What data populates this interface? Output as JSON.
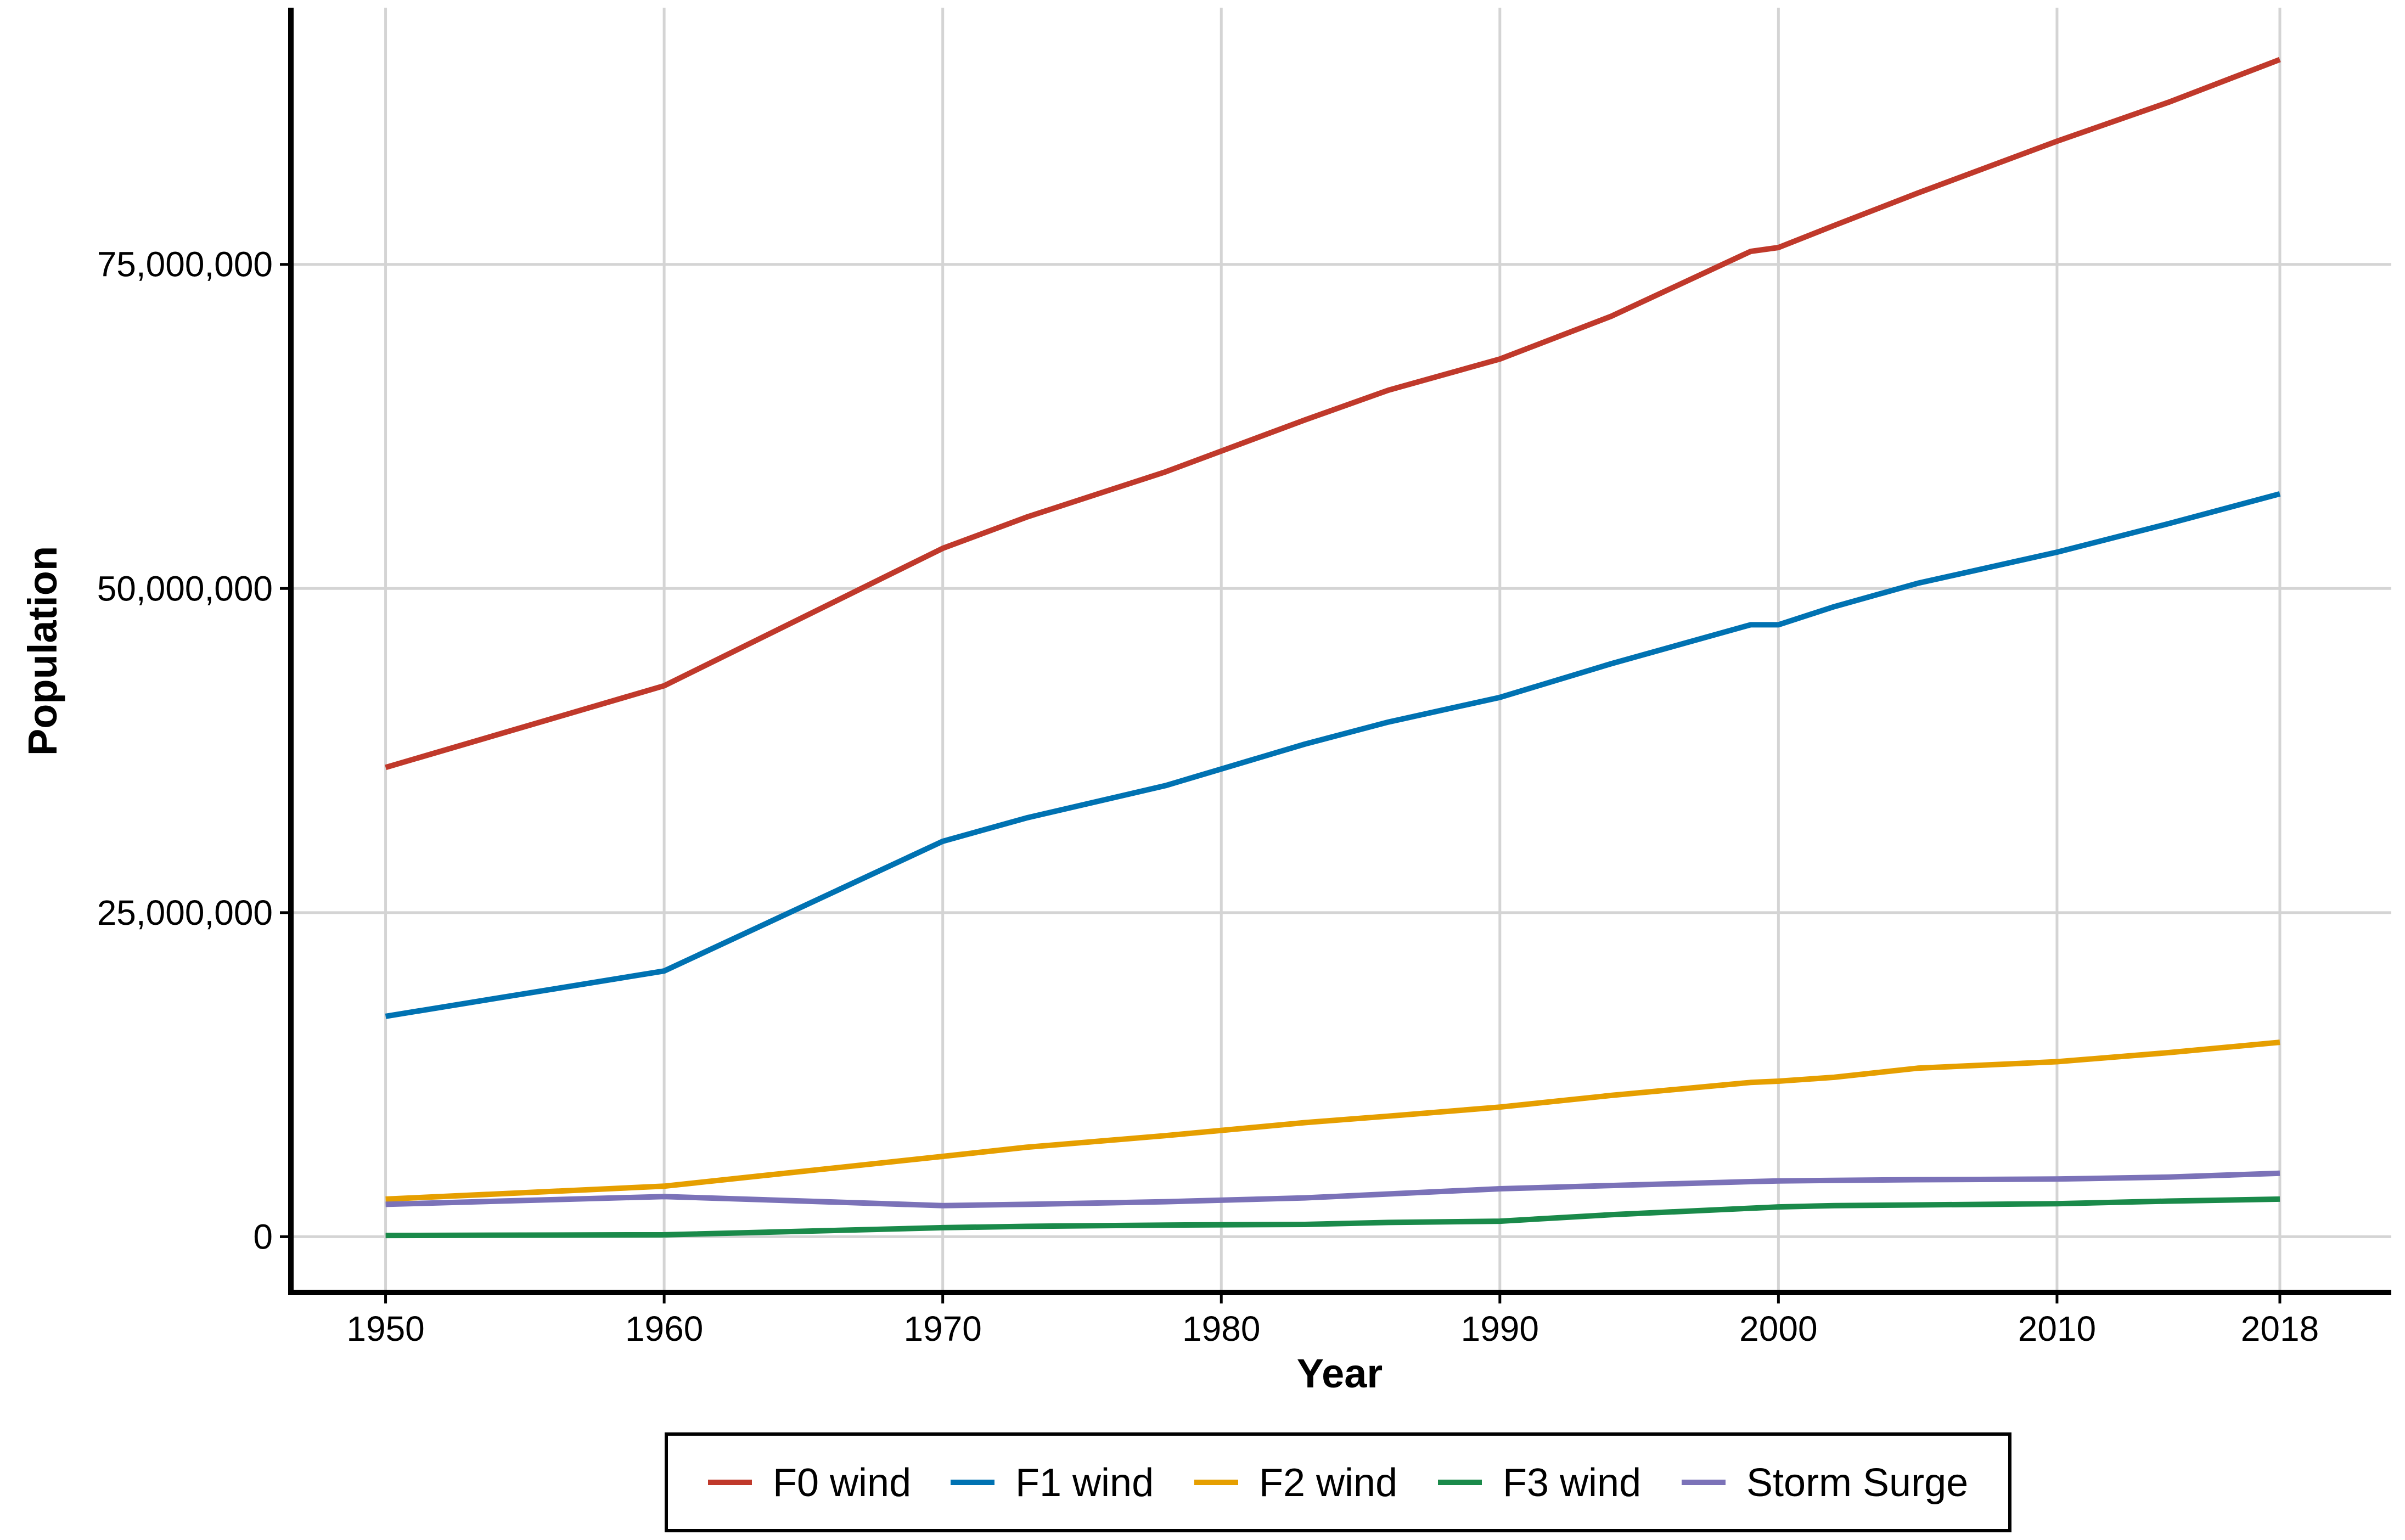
{
  "chart_data": {
    "type": "line",
    "title": "",
    "xlabel": "Year",
    "ylabel": "Population",
    "xlim": [
      1946.6,
      2022
    ],
    "ylim": [
      -4300000,
      94800000
    ],
    "x_ticks": [
      1950,
      1960,
      1970,
      1980,
      1990,
      2000,
      2010,
      2018
    ],
    "x_tick_labels": [
      "1950",
      "1960",
      "1970",
      "1980",
      "1990",
      "2000",
      "2010",
      "2018"
    ],
    "y_ticks": [
      0,
      25000000,
      50000000,
      75000000
    ],
    "y_tick_labels": [
      "0",
      "25,000,000",
      "50,000,000",
      "75,000,000"
    ],
    "grid": true,
    "legend_position": "bottom",
    "x": [
      1950,
      1960,
      1970,
      1973,
      1978,
      1983,
      1986,
      1990,
      1994,
      1999,
      2000,
      2002,
      2005,
      2010,
      2014,
      2018
    ],
    "series": [
      {
        "name": "F0 wind",
        "color": "#C0392B",
        "values": [
          36200000,
          42500000,
          53100000,
          55500000,
          59000000,
          63000000,
          65300000,
          67700000,
          71000000,
          76000000,
          76300000,
          78000000,
          80500000,
          84500000,
          87500000,
          90800000
        ]
      },
      {
        "name": "F1 wind",
        "color": "#0072B2",
        "values": [
          17000000,
          20500000,
          30500000,
          32300000,
          34800000,
          38000000,
          39700000,
          41600000,
          44200000,
          47200000,
          47200000,
          48600000,
          50400000,
          52800000,
          55000000,
          57300000
        ]
      },
      {
        "name": "F2 wind",
        "color": "#E69F00",
        "values": [
          2900000,
          3900000,
          6200000,
          6900000,
          7800000,
          8800000,
          9300000,
          10000000,
          10900000,
          11900000,
          12000000,
          12300000,
          13000000,
          13500000,
          14200000,
          15000000
        ]
      },
      {
        "name": "F3 wind",
        "color": "#1A8A4A",
        "values": [
          100000,
          150000,
          700000,
          800000,
          900000,
          950000,
          1100000,
          1200000,
          1700000,
          2200000,
          2300000,
          2400000,
          2450000,
          2550000,
          2750000,
          2900000
        ]
      },
      {
        "name": "Storm Surge",
        "color": "#7B72B8",
        "values": [
          2500000,
          3100000,
          2400000,
          2500000,
          2700000,
          3000000,
          3300000,
          3700000,
          3950000,
          4250000,
          4300000,
          4350000,
          4400000,
          4450000,
          4600000,
          4900000
        ]
      }
    ]
  }
}
